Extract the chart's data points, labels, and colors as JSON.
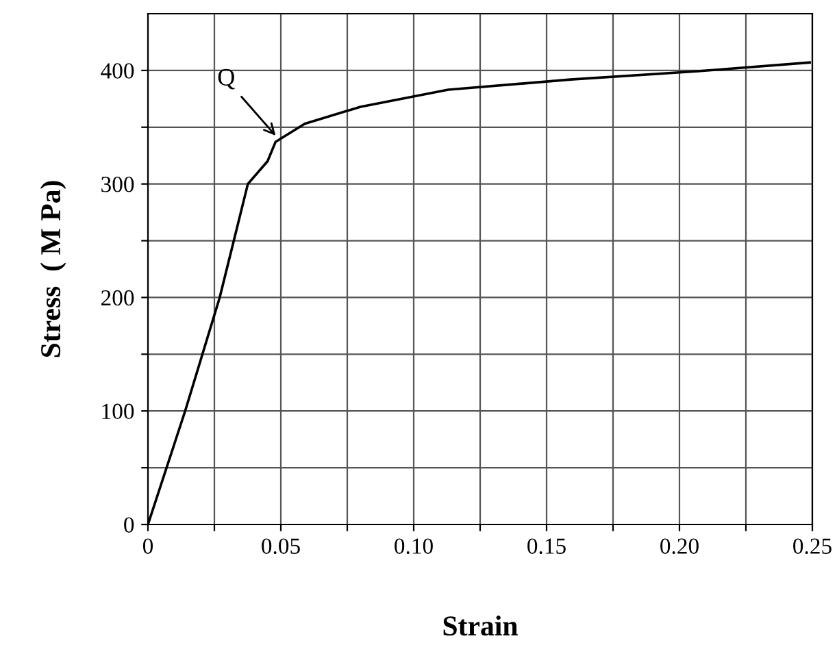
{
  "chart_data": {
    "type": "line",
    "xlabel": "Strain",
    "ylabel": "Stress  ( M Pa)",
    "x": [
      0,
      0.014,
      0.027,
      0.0376,
      0.045,
      0.048,
      0.059,
      0.08,
      0.113,
      0.159,
      0.205,
      0.249
    ],
    "values": [
      0,
      100,
      200,
      300,
      320,
      337,
      353,
      368,
      383,
      392,
      399,
      407
    ],
    "color": "#000000",
    "xlim": [
      0,
      0.25
    ],
    "ylim": [
      0,
      450
    ],
    "xticks": [
      {
        "value": 0,
        "label": "0"
      },
      {
        "value": 0.025,
        "label": null
      },
      {
        "value": 0.05,
        "label": "0.05"
      },
      {
        "value": 0.075,
        "label": null
      },
      {
        "value": 0.1,
        "label": "0.10"
      },
      {
        "value": 0.125,
        "label": null
      },
      {
        "value": 0.15,
        "label": "0.15"
      },
      {
        "value": 0.175,
        "label": null
      },
      {
        "value": 0.2,
        "label": "0.20"
      },
      {
        "value": 0.225,
        "label": null
      },
      {
        "value": 0.25,
        "label": "0.25"
      }
    ],
    "yticks": [
      0,
      {
        "value": 50,
        "label": null
      },
      100,
      {
        "value": 150,
        "label": null
      },
      200,
      {
        "value": 250,
        "label": null
      },
      300,
      {
        "value": 350,
        "label": null
      },
      400
    ],
    "annotations": [
      {
        "text": "Q",
        "x": 0.049,
        "y": 340
      }
    ],
    "grid": true,
    "marker": "none",
    "line_style": "solid"
  }
}
